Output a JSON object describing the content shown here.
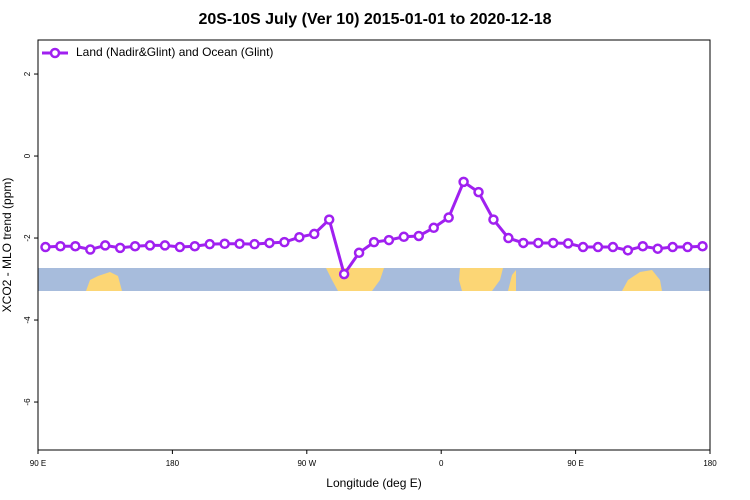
{
  "chart_data": {
    "type": "line",
    "title": "20S-10S July (Ver 10)   2015-01-01 to 2020-12-18",
    "xlabel": "Longitude (deg E)",
    "ylabel": "XCO2 - MLO trend (ppm)",
    "xlim": [
      90,
      540
    ],
    "xticks": [
      {
        "value": 90,
        "label": "90 E"
      },
      180,
      {
        "value": 270,
        "label": "90 W"
      },
      {
        "value": 360,
        "label": "0"
      },
      {
        "value": 450,
        "label": "90 E"
      },
      {
        "value": 540,
        "label": "180"
      }
    ],
    "ylim": [
      -7.17,
      2.83
    ],
    "yticks": [
      2,
      0,
      -2,
      -4,
      -6
    ],
    "legend": "top-left",
    "x": [
      95,
      105,
      115,
      125,
      135,
      145,
      155,
      165,
      175,
      185,
      195,
      205,
      215,
      225,
      235,
      245,
      255,
      265,
      275,
      285,
      295,
      305,
      315,
      325,
      335,
      345,
      355,
      365,
      375,
      385,
      395,
      405,
      415,
      425,
      435,
      445,
      455,
      465,
      475,
      485,
      495,
      505,
      515,
      525,
      535
    ],
    "series": [
      {
        "name": "Land (Nadir&Glint) and Ocean (Glint)",
        "color": "#a020f0",
        "values": [
          -2.22,
          -2.2,
          -2.2,
          -2.28,
          -2.18,
          -2.24,
          -2.2,
          -2.18,
          -2.18,
          -2.22,
          -2.2,
          -2.15,
          -2.14,
          -2.14,
          -2.15,
          -2.12,
          -2.1,
          -1.98,
          -1.9,
          -1.55,
          -2.88,
          -2.36,
          -2.1,
          -2.05,
          -1.97,
          -1.95,
          -1.75,
          -1.5,
          -0.63,
          -0.88,
          -1.55,
          -2.0,
          -2.12,
          -2.12,
          -2.12,
          -2.13,
          -2.22,
          -2.22,
          -2.22,
          -2.3,
          -2.2,
          -2.26,
          -2.22,
          -2.22,
          -2.2
        ]
      }
    ]
  }
}
